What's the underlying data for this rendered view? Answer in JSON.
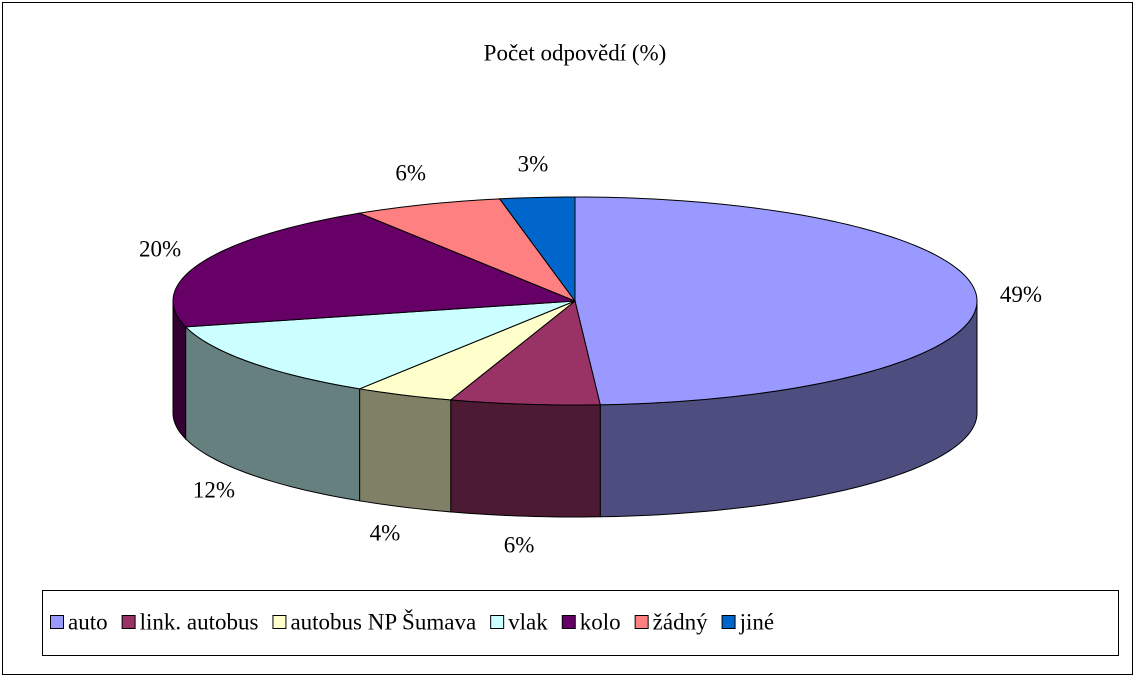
{
  "chart_data": {
    "type": "pie3d",
    "title": "Počet odpovědí (%)",
    "categories": [
      "auto",
      "link. autobus",
      "autobus NP Šumava",
      "vlak",
      "kolo",
      "žádný",
      "jiné"
    ],
    "values": [
      49,
      6,
      4,
      12,
      20,
      6,
      3
    ],
    "value_labels": [
      "49%",
      "6%",
      "4%",
      "12%",
      "20%",
      "6%",
      "3%"
    ],
    "colors": [
      "#9999ff",
      "#993366",
      "#ffffcc",
      "#ccffff",
      "#660066",
      "#ff8080",
      "#0066cc"
    ],
    "legend": "bottom"
  }
}
